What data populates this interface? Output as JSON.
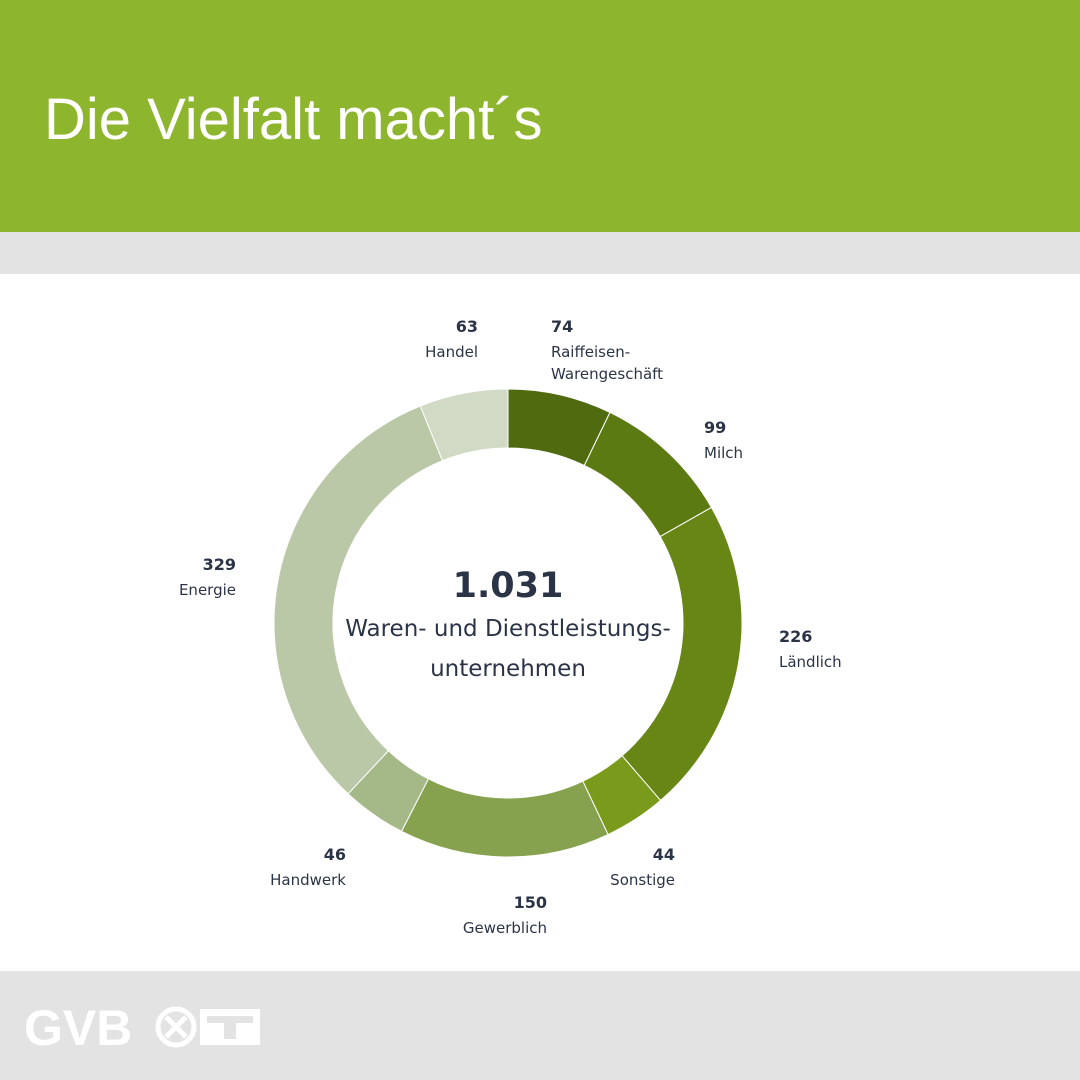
{
  "header": {
    "title": "Die Vielfalt macht´s"
  },
  "chart_data": {
    "type": "pie",
    "donut": true,
    "center": {
      "total": "1.031",
      "caption_lines": [
        "Waren- und Dienstleistungs-",
        "unternehmen"
      ]
    },
    "segments": [
      {
        "label_lines": [
          "Raiffeisen-",
          "Warengeschäft"
        ],
        "value": 74,
        "color": "#4f6a0f"
      },
      {
        "label_lines": [
          "Milch"
        ],
        "value": 99,
        "color": "#5c7a12"
      },
      {
        "label_lines": [
          "Ländlich"
        ],
        "value": 226,
        "color": "#688616"
      },
      {
        "label_lines": [
          "Sonstige"
        ],
        "value": 44,
        "color": "#7a9a1c"
      },
      {
        "label_lines": [
          "Gewerblich"
        ],
        "value": 150,
        "color": "#87a24e"
      },
      {
        "label_lines": [
          "Handwerk"
        ],
        "value": 46,
        "color": "#a4b987"
      },
      {
        "label_lines": [
          "Energie"
        ],
        "value": 329,
        "color": "#bac8a8"
      },
      {
        "label_lines": [
          "Handel"
        ],
        "value": 63,
        "color": "#d0dac4"
      }
    ]
  },
  "footer": {
    "logo_text": "GVB",
    "logo_colors": {
      "mark": "#ffffff"
    },
    "icon_names": [
      "gvb-wordmark",
      "crossed-tools-icon",
      "raiffeisen-gable-icon"
    ]
  }
}
